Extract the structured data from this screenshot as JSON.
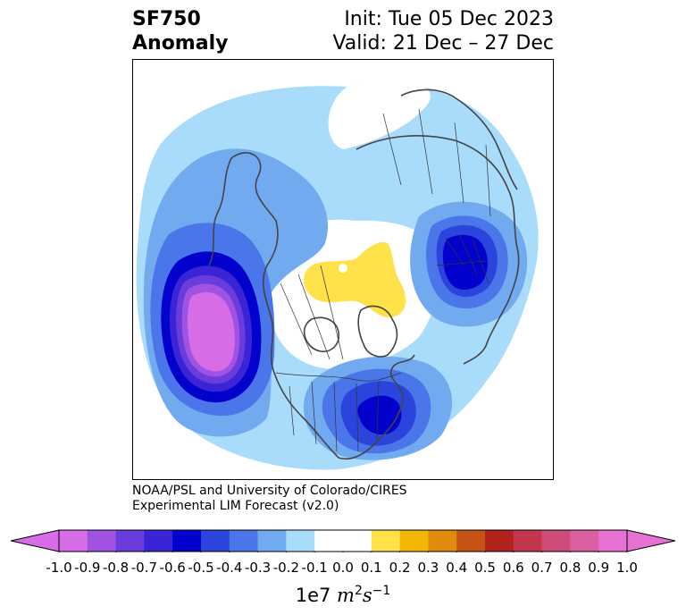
{
  "title": {
    "variable": "SF750",
    "kind": "Anomaly",
    "init": "Init: Tue 05 Dec 2023",
    "valid": "Valid: 21 Dec – 27 Dec"
  },
  "credit": {
    "line1": "NOAA/PSL and University of Colorado/CIRES",
    "line2": "Experimental LIM Forecast (v2.0)"
  },
  "colorbar": {
    "bins": [
      {
        "from": -1.0,
        "to": -0.9,
        "color": "#d66ce6"
      },
      {
        "from": -0.9,
        "to": -0.8,
        "color": "#a052e3"
      },
      {
        "from": -0.8,
        "to": -0.7,
        "color": "#6a3cdb"
      },
      {
        "from": -0.7,
        "to": -0.6,
        "color": "#3a24d6"
      },
      {
        "from": -0.6,
        "to": -0.5,
        "color": "#0202cc"
      },
      {
        "from": -0.5,
        "to": -0.4,
        "color": "#2a44dc"
      },
      {
        "from": -0.4,
        "to": -0.3,
        "color": "#4b76ea"
      },
      {
        "from": -0.3,
        "to": -0.2,
        "color": "#72aaf0"
      },
      {
        "from": -0.2,
        "to": -0.1,
        "color": "#a9dbfb"
      },
      {
        "from": -0.1,
        "to": 0.0,
        "color": "#ffffff"
      },
      {
        "from": 0.0,
        "to": 0.1,
        "color": "#ffffff"
      },
      {
        "from": 0.1,
        "to": 0.2,
        "color": "#ffe14a"
      },
      {
        "from": 0.2,
        "to": 0.3,
        "color": "#f2b705"
      },
      {
        "from": 0.3,
        "to": 0.4,
        "color": "#e08a0c"
      },
      {
        "from": 0.4,
        "to": 0.5,
        "color": "#c55316"
      },
      {
        "from": 0.5,
        "to": 0.6,
        "color": "#b4221e"
      },
      {
        "from": 0.6,
        "to": 0.7,
        "color": "#c2364e"
      },
      {
        "from": 0.7,
        "to": 0.8,
        "color": "#cf4c7a"
      },
      {
        "from": 0.8,
        "to": 0.9,
        "color": "#db60a2"
      },
      {
        "from": 0.9,
        "to": 1.0,
        "color": "#e671d3"
      }
    ],
    "under_color": "#d66ce6",
    "over_color": "#e671d3",
    "ticks": [
      "-1.0",
      "-0.9",
      "-0.8",
      "-0.7",
      "-0.6",
      "-0.5",
      "-0.4",
      "-0.3",
      "-0.2",
      "-0.1",
      "0.0",
      "0.1",
      "0.2",
      "0.3",
      "0.4",
      "0.5",
      "0.6",
      "0.7",
      "0.8",
      "0.9",
      "1.0"
    ],
    "units_prefix": "1e7 ",
    "units_m": "m",
    "units_m_exp": "2",
    "units_s": "s",
    "units_s_exp": "−1"
  },
  "map": {
    "projection": "north-polar-stereographic",
    "features": [
      {
        "name": "north-pacific-low",
        "sign": "negative",
        "min_level": -1.0
      },
      {
        "name": "eastern-us-low",
        "sign": "negative",
        "min_level": -0.6
      },
      {
        "name": "europe-low",
        "sign": "negative",
        "min_level": -0.6
      },
      {
        "name": "arctic-high",
        "sign": "positive",
        "max_level": 0.2
      }
    ],
    "colors": {
      "land_outline": "#444444",
      "border": "#333333"
    }
  }
}
